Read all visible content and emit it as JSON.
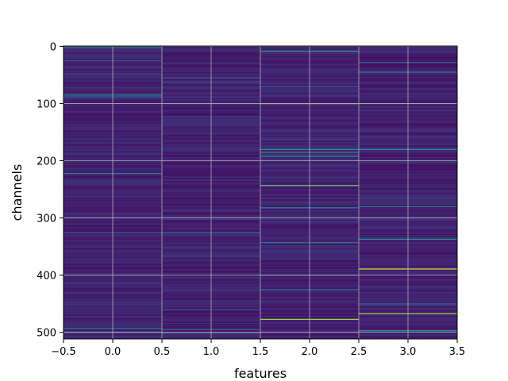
{
  "chart_data": {
    "type": "heatmap",
    "title": "",
    "xlabel": "features",
    "ylabel": "channels",
    "xlim": [
      -0.5,
      3.5
    ],
    "ylim": [
      511.5,
      -0.5
    ],
    "y_inverted": true,
    "xticks": [
      -0.5,
      0.0,
      0.5,
      1.0,
      1.5,
      2.0,
      2.5,
      3.0,
      3.5
    ],
    "xtick_labels": [
      "−0.5",
      "0.0",
      "0.5",
      "1.0",
      "1.5",
      "2.0",
      "2.5",
      "3.0",
      "3.5"
    ],
    "yticks": [
      0,
      100,
      200,
      300,
      400,
      500
    ],
    "ytick_labels": [
      "0",
      "100",
      "200",
      "300",
      "400",
      "500"
    ],
    "grid": true,
    "colormap": "viridis",
    "columns": [
      0,
      1,
      2,
      3
    ],
    "rows": 512,
    "base_color": "#3b1f6b",
    "bright_bands": [
      {
        "column": 0,
        "channel": 2,
        "value": 0.45
      },
      {
        "column": 0,
        "channel": 25,
        "value": 0.25
      },
      {
        "column": 0,
        "channel": 48,
        "value": 0.25
      },
      {
        "column": 0,
        "channel": 85,
        "value": 0.45
      },
      {
        "column": 0,
        "channel": 88,
        "value": 0.35
      },
      {
        "column": 0,
        "channel": 222,
        "value": 0.45
      },
      {
        "column": 0,
        "channel": 325,
        "value": 0.3
      },
      {
        "column": 0,
        "channel": 400,
        "value": 0.3
      },
      {
        "column": 0,
        "channel": 493,
        "value": 0.45
      },
      {
        "column": 0,
        "channel": 500,
        "value": 0.35
      },
      {
        "column": 1,
        "channel": 55,
        "value": 0.3
      },
      {
        "column": 1,
        "channel": 62,
        "value": 0.25
      },
      {
        "column": 1,
        "channel": 325,
        "value": 0.3
      },
      {
        "column": 1,
        "channel": 460,
        "value": 0.3
      },
      {
        "column": 1,
        "channel": 495,
        "value": 0.35
      },
      {
        "column": 1,
        "channel": 500,
        "value": 0.3
      },
      {
        "column": 2,
        "channel": 8,
        "value": 0.55
      },
      {
        "column": 2,
        "channel": 70,
        "value": 0.35
      },
      {
        "column": 2,
        "channel": 100,
        "value": 0.75
      },
      {
        "column": 2,
        "channel": 180,
        "value": 0.6
      },
      {
        "column": 2,
        "channel": 185,
        "value": 0.45
      },
      {
        "column": 2,
        "channel": 192,
        "value": 0.55
      },
      {
        "column": 2,
        "channel": 243,
        "value": 0.75
      },
      {
        "column": 2,
        "channel": 282,
        "value": 0.5
      },
      {
        "column": 2,
        "channel": 343,
        "value": 0.45
      },
      {
        "column": 2,
        "channel": 400,
        "value": 0.45
      },
      {
        "column": 2,
        "channel": 425,
        "value": 0.4
      },
      {
        "column": 2,
        "channel": 477,
        "value": 0.85
      },
      {
        "column": 3,
        "channel": 28,
        "value": 0.35
      },
      {
        "column": 3,
        "channel": 45,
        "value": 0.45
      },
      {
        "column": 3,
        "channel": 100,
        "value": 0.45
      },
      {
        "column": 3,
        "channel": 180,
        "value": 0.55
      },
      {
        "column": 3,
        "channel": 280,
        "value": 0.45
      },
      {
        "column": 3,
        "channel": 337,
        "value": 0.5
      },
      {
        "column": 3,
        "channel": 389,
        "value": 0.95
      },
      {
        "column": 3,
        "channel": 450,
        "value": 0.4
      },
      {
        "column": 3,
        "channel": 467,
        "value": 0.85
      },
      {
        "column": 3,
        "channel": 497,
        "value": 0.55
      }
    ]
  }
}
